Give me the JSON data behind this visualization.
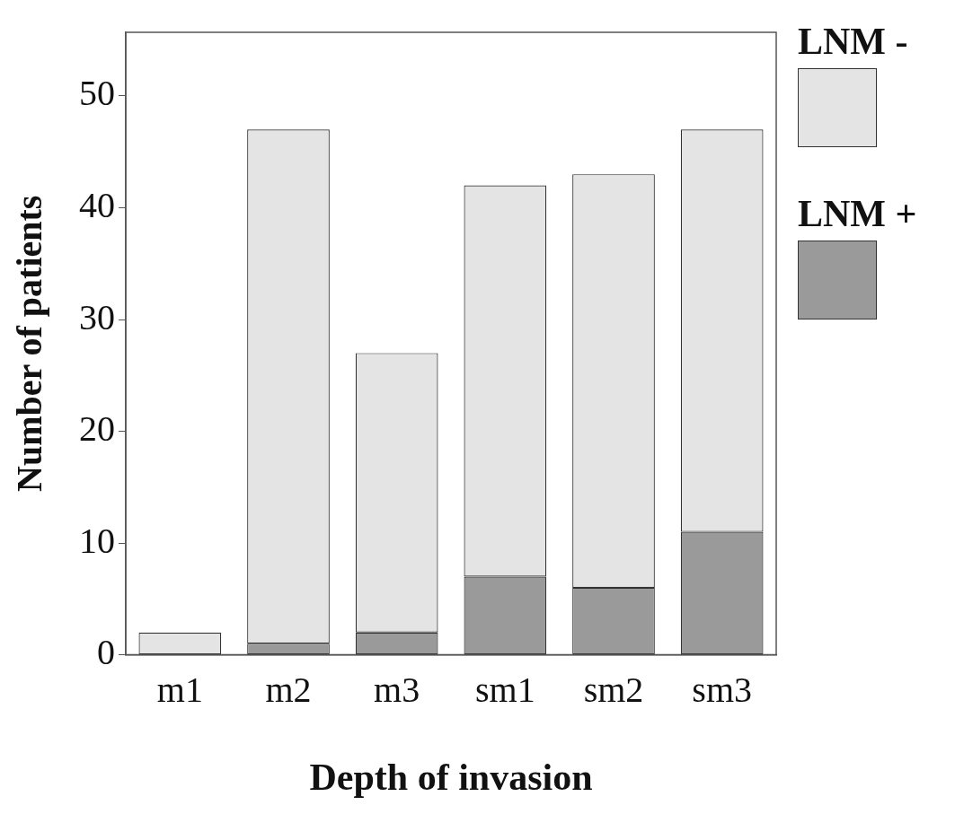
{
  "chart_data": {
    "type": "bar",
    "stacked": true,
    "xlabel": "Depth of invasion",
    "ylabel": "Number of patients",
    "categories": [
      "m1",
      "m2",
      "m3",
      "sm1",
      "sm2",
      "sm3"
    ],
    "series": [
      {
        "name": "LNM +",
        "color": "#9a9a9a",
        "values": [
          0,
          1,
          2,
          7,
          6,
          11
        ]
      },
      {
        "name": "LNM -",
        "color": "#e4e4e4",
        "values": [
          2,
          46,
          25,
          35,
          37,
          36
        ]
      }
    ],
    "ylim": [
      0,
      55.7
    ],
    "yticks": [
      0,
      10,
      20,
      30,
      40,
      50
    ],
    "grid": false,
    "legend": "top right"
  }
}
